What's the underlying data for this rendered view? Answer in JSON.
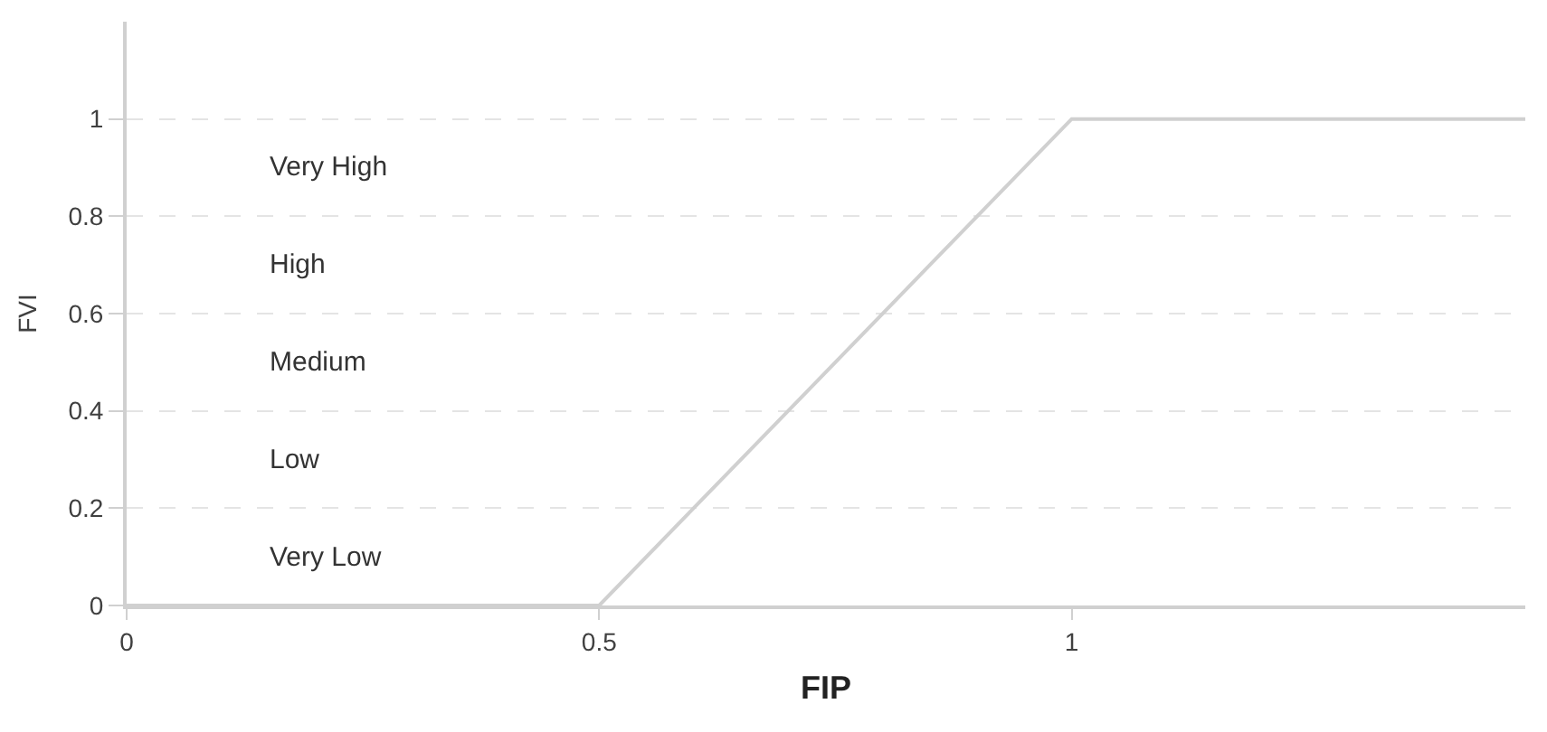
{
  "chart_data": {
    "type": "line",
    "xlabel": "FIP",
    "ylabel": "FVI",
    "x": [
      0,
      0.5,
      1,
      1.48
    ],
    "series": [
      {
        "color": "#d0d0d0",
        "values": [
          0,
          0,
          1,
          1
        ]
      }
    ],
    "xlim": [
      0,
      1.48
    ],
    "xticks": [
      0,
      0.5,
      1
    ],
    "ylim": [
      0,
      1.2
    ],
    "yticks": [
      0,
      0.2,
      0.4,
      0.6,
      0.8,
      1
    ],
    "grid": "y",
    "marker": "none",
    "line_style": "solid",
    "annotations": [
      "Very High",
      "High",
      "Medium",
      "Low",
      "Very Low"
    ]
  }
}
